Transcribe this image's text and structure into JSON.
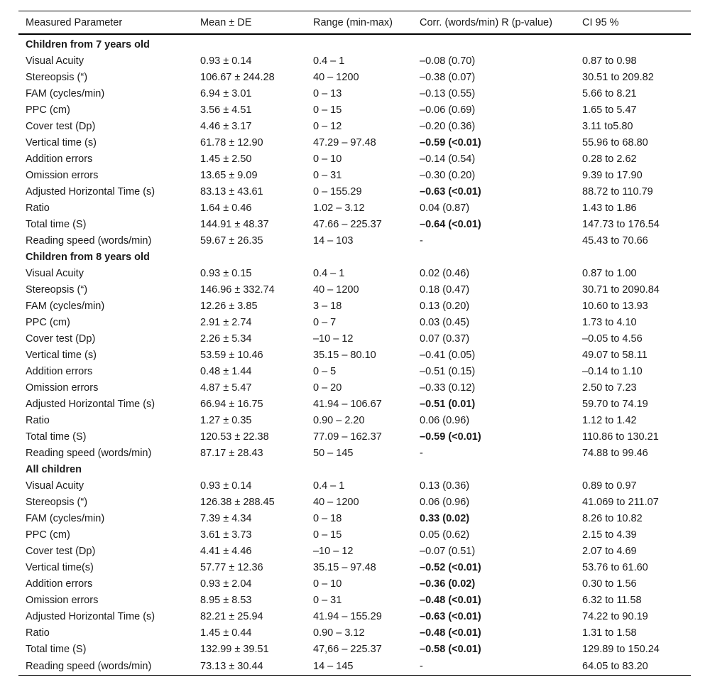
{
  "headers": [
    "Measured Parameter",
    "Mean ± DE",
    "Range (min-max)",
    "Corr. (words/min) R (p-value)",
    "CI 95 %"
  ],
  "groups": [
    {
      "title": "Children from 7 years old",
      "rows": [
        {
          "param": "Visual Acuity",
          "mean": "0.93 ± 0.14",
          "range": "0.4 – 1",
          "corr": "–0.08 (0.70)",
          "corr_bold": false,
          "ci": "0.87 to 0.98"
        },
        {
          "param": "Stereopsis (“)",
          "mean": "106.67 ± 244.28",
          "range": "40 – 1200",
          "corr": "–0.38 (0.07)",
          "corr_bold": false,
          "ci": "30.51 to 209.82"
        },
        {
          "param": "FAM (cycles/min)",
          "mean": "6.94 ± 3.01",
          "range": "0 – 13",
          "corr": "–0.13 (0.55)",
          "corr_bold": false,
          "ci": "5.66 to 8.21"
        },
        {
          "param": "PPC (cm)",
          "mean": "3.56 ± 4.51",
          "range": "0 – 15",
          "corr": "–0.06 (0.69)",
          "corr_bold": false,
          "ci": "1.65 to 5.47"
        },
        {
          "param": "Cover test (Dp)",
          "mean": "4.46 ± 3.17",
          "range": "0 – 12",
          "corr": "–0.20 (0.36)",
          "corr_bold": false,
          "ci": "3.11 to5.80"
        },
        {
          "param": "Vertical time (s)",
          "mean": "61.78 ± 12.90",
          "range": "47.29 – 97.48",
          "corr": "–0.59 (<0.01)",
          "corr_bold": true,
          "ci": "55.96 to 68.80"
        },
        {
          "param": "Addition errors",
          "mean": "1.45 ± 2.50",
          "range": "0 – 10",
          "corr": "–0.14 (0.54)",
          "corr_bold": false,
          "ci": "0.28 to 2.62"
        },
        {
          "param": "Omission errors",
          "mean": "13.65 ± 9.09",
          "range": "0 – 31",
          "corr": "–0.30 (0.20)",
          "corr_bold": false,
          "ci": "9.39 to 17.90"
        },
        {
          "param": "Adjusted Horizontal Time (s)",
          "mean": "83.13 ± 43.61",
          "range": "0 – 155.29",
          "corr": "–0.63 (<0.01)",
          "corr_bold": true,
          "ci": "88.72 to 110.79"
        },
        {
          "param": "Ratio",
          "mean": "1.64 ± 0.46",
          "range": "1.02 – 3.12",
          "corr": "0.04 (0.87)",
          "corr_bold": false,
          "ci": "1.43 to 1.86"
        },
        {
          "param": "Total time (S)",
          "mean": "144.91 ± 48.37",
          "range": "47.66 – 225.37",
          "corr": "–0.64 (<0.01)",
          "corr_bold": true,
          "ci": "147.73 to 176.54"
        },
        {
          "param": "Reading speed (words/min)",
          "mean": "59.67 ± 26.35",
          "range": "14 – 103",
          "corr": "-",
          "corr_bold": false,
          "ci": "45.43 to 70.66"
        }
      ]
    },
    {
      "title": "Children from 8 years old",
      "rows": [
        {
          "param": "Visual Acuity",
          "mean": "0.93 ± 0.15",
          "range": "0.4 – 1",
          "corr": "0.02 (0.46)",
          "corr_bold": false,
          "ci": "0.87 to 1.00"
        },
        {
          "param": "Stereopsis (“)",
          "mean": "146.96 ± 332.74",
          "range": "40 – 1200",
          "corr": "0.18 (0.47)",
          "corr_bold": false,
          "ci": "30.71 to 2090.84"
        },
        {
          "param": "FAM (cycles/min)",
          "mean": "12.26 ± 3.85",
          "range": "3 – 18",
          "corr": "0.13 (0.20)",
          "corr_bold": false,
          "ci": "10.60 to 13.93"
        },
        {
          "param": "PPC (cm)",
          "mean": "2.91 ± 2.74",
          "range": "0 – 7",
          "corr": "0.03 (0.45)",
          "corr_bold": false,
          "ci": "1.73 to 4.10"
        },
        {
          "param": "Cover test (Dp)",
          "mean": "2.26 ± 5.34",
          "range": "–10 – 12",
          "corr": "0.07 (0.37)",
          "corr_bold": false,
          "ci": "–0.05 to 4.56"
        },
        {
          "param": "Vertical time (s)",
          "mean": "53.59 ± 10.46",
          "range": "35.15 – 80.10",
          "corr": "–0.41 (0.05)",
          "corr_bold": false,
          "ci": "49.07 to 58.11"
        },
        {
          "param": "Addition errors",
          "mean": "0.48 ± 1.44",
          "range": "0 – 5",
          "corr": "–0.51 (0.15)",
          "corr_bold": false,
          "ci": "–0.14 to 1.10"
        },
        {
          "param": "Omission errors",
          "mean": "4.87 ± 5.47",
          "range": "0 – 20",
          "corr": "–0.33 (0.12)",
          "corr_bold": false,
          "ci": "2.50 to 7.23"
        },
        {
          "param": "Adjusted Horizontal Time (s)",
          "mean": "66.94 ± 16.75",
          "range": "41.94 – 106.67",
          "corr": "–0.51 (0.01)",
          "corr_bold": true,
          "ci": "59.70 to 74.19"
        },
        {
          "param": "Ratio",
          "mean": "1.27 ± 0.35",
          "range": "0.90 – 2.20",
          "corr": "0.06 (0.96)",
          "corr_bold": false,
          "ci": "1.12 to 1.42"
        },
        {
          "param": "Total time (S)",
          "mean": "120.53 ± 22.38",
          "range": "77.09 – 162.37",
          "corr": "–0.59 (<0.01)",
          "corr_bold": true,
          "ci": "110.86 to 130.21"
        },
        {
          "param": "Reading speed (words/min)",
          "mean": "87.17 ± 28.43",
          "range": "50 – 145",
          "corr": "-",
          "corr_bold": false,
          "ci": "74.88 to 99.46"
        }
      ]
    },
    {
      "title": "All children",
      "rows": [
        {
          "param": "Visual Acuity",
          "mean": "0.93 ± 0.14",
          "range": "0.4 – 1",
          "corr": "0.13 (0.36)",
          "corr_bold": false,
          "ci": "0.89 to 0.97"
        },
        {
          "param": "Stereopsis (“)",
          "mean": "126.38 ± 288.45",
          "range": "40 – 1200",
          "corr": "0.06 (0.96)",
          "corr_bold": false,
          "ci": "41.069 to 211.07"
        },
        {
          "param": "FAM (cycles/min)",
          "mean": "7.39 ± 4.34",
          "range": "0 – 18",
          "corr": "0.33 (0.02)",
          "corr_bold": true,
          "ci": "8.26 to 10.82"
        },
        {
          "param": "PPC (cm)",
          "mean": "3.61 ± 3.73",
          "range": "0 – 15",
          "corr": "0.05 (0.62)",
          "corr_bold": false,
          "ci": "2.15 to 4.39"
        },
        {
          "param": "Cover test (Dp)",
          "mean": "4.41 ± 4.46",
          "range": "–10 – 12",
          "corr": "–0.07 (0.51)",
          "corr_bold": false,
          "ci": "2.07 to 4.69"
        },
        {
          "param": "Vertical time(s)",
          "mean": "57.77 ± 12.36",
          "range": "35.15 – 97.48",
          "corr": "–0.52 (<0.01)",
          "corr_bold": true,
          "ci": "53.76 to 61.60"
        },
        {
          "param": "Addition errors",
          "mean": "0.93 ± 2.04",
          "range": "0 – 10",
          "corr": "–0.36 (0.02)",
          "corr_bold": true,
          "ci": "0.30 to 1.56"
        },
        {
          "param": "Omission errors",
          "mean": "8.95 ± 8.53",
          "range": "0 – 31",
          "corr": "–0.48 (<0.01)",
          "corr_bold": true,
          "ci": "6.32 to 11.58"
        },
        {
          "param": "Adjusted Horizontal Time (s)",
          "mean": "82.21 ± 25.94",
          "range": "41.94 – 155.29",
          "corr": "–0.63 (<0.01)",
          "corr_bold": true,
          "ci": "74.22 to 90.19"
        },
        {
          "param": "Ratio",
          "mean": "1.45 ± 0.44",
          "range": "0.90 – 3.12",
          "corr": "–0.48 (<0.01)",
          "corr_bold": true,
          "ci": "1.31 to 1.58"
        },
        {
          "param": "Total time (S)",
          "mean": "132.99 ± 39.51",
          "range": "47,66 – 225.37",
          "corr": "–0.58 (<0.01)",
          "corr_bold": true,
          "ci": "129.89 to 150.24"
        },
        {
          "param": "Reading speed (words/min)",
          "mean": "73.13 ± 30.44",
          "range": "14 – 145",
          "corr": "-",
          "corr_bold": false,
          "ci": "64.05 to 83.20"
        }
      ]
    }
  ]
}
